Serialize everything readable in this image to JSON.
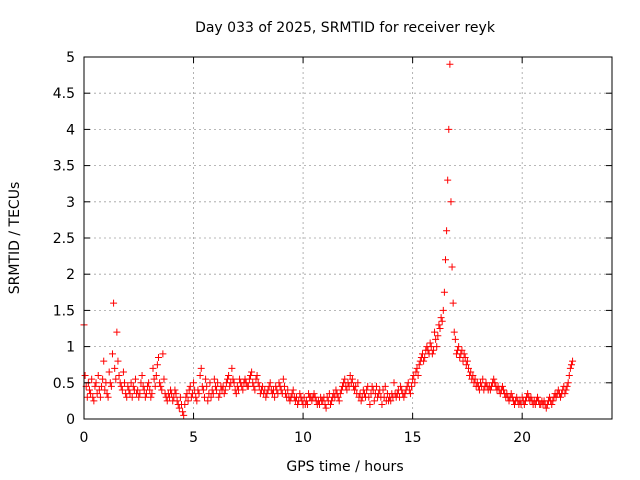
{
  "chart_data": {
    "type": "scatter",
    "title": "Day 033 of 2025, SRMTID for receiver reyk",
    "xlabel": "GPS time / hours",
    "ylabel": "SRMTID / TECUs",
    "xlim": [
      0,
      24.1
    ],
    "ylim": [
      0,
      5
    ],
    "x_ticks": [
      0,
      5,
      10,
      15,
      20
    ],
    "x_tick_labels": [
      "0",
      "5",
      "10",
      "15",
      "20"
    ],
    "y_ticks": [
      0,
      0.5,
      1,
      1.5,
      2,
      2.5,
      3,
      3.5,
      4,
      4.5,
      5
    ],
    "y_tick_labels": [
      "0",
      "0.5",
      "1",
      "1.5",
      "2",
      "2.5",
      "3",
      "3.5",
      "4",
      "4.5",
      "5"
    ],
    "grid": true,
    "marker": "+",
    "series": [
      {
        "name": "SRMTID",
        "color": "#ff0000",
        "x_start": 0.0,
        "x_step": 0.05,
        "values": [
          1.3,
          0.6,
          0.45,
          0.3,
          0.5,
          0.4,
          0.35,
          0.55,
          0.3,
          0.25,
          0.45,
          0.5,
          0.35,
          0.6,
          0.4,
          0.3,
          0.45,
          0.55,
          0.8,
          0.4,
          0.5,
          0.35,
          0.3,
          0.65,
          0.5,
          0.45,
          0.9,
          1.6,
          0.7,
          0.55,
          1.2,
          0.8,
          0.6,
          0.5,
          0.45,
          0.4,
          0.65,
          0.5,
          0.35,
          0.3,
          0.45,
          0.4,
          0.35,
          0.5,
          0.3,
          0.45,
          0.4,
          0.55,
          0.35,
          0.4,
          0.3,
          0.35,
          0.5,
          0.6,
          0.45,
          0.4,
          0.3,
          0.35,
          0.45,
          0.5,
          0.4,
          0.3,
          0.35,
          0.7,
          0.55,
          0.45,
          0.6,
          0.75,
          0.85,
          0.5,
          0.45,
          0.4,
          0.9,
          0.55,
          0.35,
          0.3,
          0.25,
          0.35,
          0.3,
          0.4,
          0.35,
          0.25,
          0.3,
          0.4,
          0.35,
          0.25,
          0.2,
          0.15,
          0.3,
          0.2,
          0.1,
          0.05,
          0.2,
          0.3,
          0.35,
          0.25,
          0.4,
          0.45,
          0.3,
          0.35,
          0.5,
          0.4,
          0.3,
          0.25,
          0.4,
          0.35,
          0.6,
          0.7,
          0.45,
          0.4,
          0.3,
          0.55,
          0.45,
          0.25,
          0.35,
          0.5,
          0.3,
          0.4,
          0.35,
          0.55,
          0.45,
          0.4,
          0.5,
          0.3,
          0.35,
          0.45,
          0.4,
          0.45,
          0.35,
          0.4,
          0.5,
          0.55,
          0.6,
          0.45,
          0.5,
          0.7,
          0.55,
          0.5,
          0.4,
          0.35,
          0.45,
          0.4,
          0.55,
          0.5,
          0.45,
          0.4,
          0.5,
          0.55,
          0.5,
          0.45,
          0.45,
          0.55,
          0.6,
          0.65,
          0.5,
          0.45,
          0.4,
          0.55,
          0.6,
          0.5,
          0.45,
          0.35,
          0.4,
          0.45,
          0.35,
          0.4,
          0.3,
          0.35,
          0.4,
          0.45,
          0.5,
          0.4,
          0.35,
          0.4,
          0.3,
          0.45,
          0.4,
          0.35,
          0.5,
          0.45,
          0.4,
          0.35,
          0.55,
          0.45,
          0.35,
          0.3,
          0.4,
          0.3,
          0.25,
          0.3,
          0.35,
          0.4,
          0.3,
          0.25,
          0.3,
          0.2,
          0.25,
          0.35,
          0.3,
          0.25,
          0.2,
          0.3,
          0.2,
          0.25,
          0.2,
          0.35,
          0.3,
          0.3,
          0.25,
          0.3,
          0.35,
          0.3,
          0.25,
          0.2,
          0.25,
          0.2,
          0.3,
          0.25,
          0.25,
          0.3,
          0.2,
          0.15,
          0.3,
          0.25,
          0.35,
          0.2,
          0.25,
          0.3,
          0.35,
          0.3,
          0.4,
          0.35,
          0.3,
          0.25,
          0.35,
          0.4,
          0.45,
          0.5,
          0.55,
          0.45,
          0.4,
          0.5,
          0.45,
          0.6,
          0.5,
          0.55,
          0.45,
          0.4,
          0.45,
          0.35,
          0.5,
          0.3,
          0.35,
          0.25,
          0.3,
          0.4,
          0.35,
          0.3,
          0.4,
          0.45,
          0.3,
          0.2,
          0.35,
          0.45,
          0.4,
          0.25,
          0.35,
          0.45,
          0.3,
          0.35,
          0.4,
          0.3,
          0.2,
          0.4,
          0.3,
          0.45,
          0.25,
          0.35,
          0.25,
          0.3,
          0.25,
          0.35,
          0.3,
          0.5,
          0.35,
          0.3,
          0.35,
          0.4,
          0.3,
          0.45,
          0.4,
          0.35,
          0.3,
          0.35,
          0.4,
          0.45,
          0.5,
          0.4,
          0.35,
          0.45,
          0.55,
          0.6,
          0.5,
          0.65,
          0.7,
          0.6,
          0.75,
          0.8,
          0.85,
          0.9,
          0.8,
          0.85,
          0.95,
          1.0,
          0.95,
          0.9,
          1.05,
          1.0,
          0.9,
          0.95,
          1.2,
          1.1,
          1.0,
          1.15,
          1.3,
          1.25,
          1.4,
          1.35,
          1.5,
          1.75,
          2.2,
          2.6,
          3.3,
          4.0,
          4.9,
          3.0,
          2.1,
          1.6,
          1.2,
          1.1,
          0.9,
          0.95,
          1.0,
          0.85,
          0.9,
          0.95,
          0.8,
          0.9,
          0.85,
          0.75,
          0.8,
          0.7,
          0.6,
          0.65,
          0.55,
          0.6,
          0.5,
          0.55,
          0.45,
          0.5,
          0.45,
          0.4,
          0.5,
          0.45,
          0.55,
          0.4,
          0.45,
          0.5,
          0.45,
          0.4,
          0.45,
          0.4,
          0.45,
          0.5,
          0.55,
          0.5,
          0.45,
          0.4,
          0.45,
          0.4,
          0.35,
          0.4,
          0.45,
          0.4,
          0.35,
          0.3,
          0.35,
          0.3,
          0.25,
          0.3,
          0.35,
          0.3,
          0.25,
          0.2,
          0.25,
          0.3,
          0.25,
          0.2,
          0.25,
          0.2,
          0.3,
          0.25,
          0.2,
          0.25,
          0.3,
          0.35,
          0.3,
          0.25,
          0.3,
          0.25,
          0.2,
          0.25,
          0.2,
          0.25,
          0.3,
          0.25,
          0.2,
          0.2,
          0.25,
          0.2,
          0.25,
          0.2,
          0.15,
          0.2,
          0.25,
          0.3,
          0.25,
          0.2,
          0.25,
          0.3,
          0.35,
          0.3,
          0.35,
          0.4,
          0.35,
          0.3,
          0.35,
          0.4,
          0.45,
          0.35,
          0.4,
          0.45,
          0.5,
          0.6,
          0.7,
          0.75,
          0.8
        ]
      }
    ]
  }
}
